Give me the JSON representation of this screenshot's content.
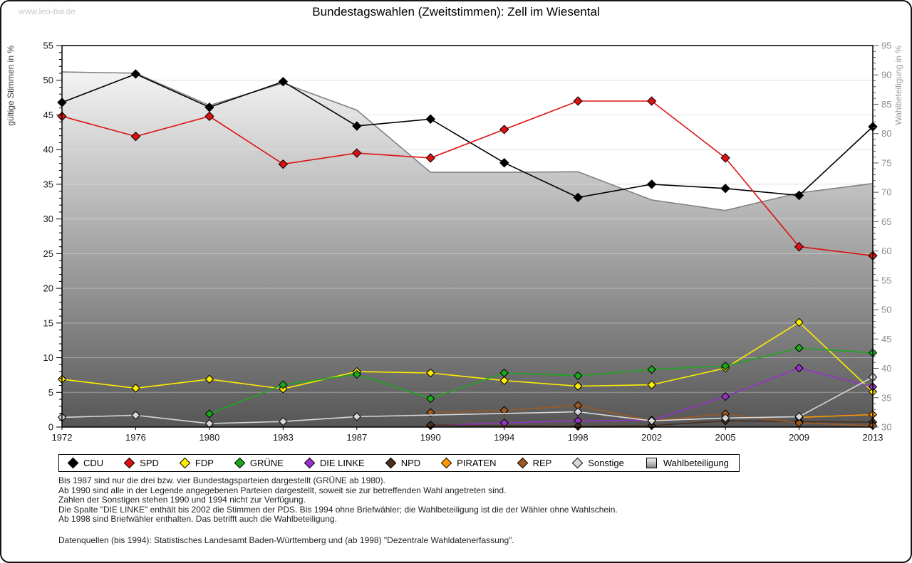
{
  "watermark": "www.leo-bw.de",
  "title": "Bundestagswahlen (Zweitstimmen): Zell im Wiesental",
  "chart_data": {
    "type": "line",
    "title": "Bundestagswahlen (Zweitstimmen): Zell im Wiesental",
    "x_categories": [
      1972,
      1976,
      1980,
      1983,
      1987,
      1990,
      1994,
      1998,
      2002,
      2005,
      2009,
      2013
    ],
    "y_left": {
      "label": "gültige Stimmen in %",
      "min": 0,
      "max": 55,
      "tick_step": 5
    },
    "y_right": {
      "label": "Wahlbeteiligung in %",
      "min": 30,
      "max": 95,
      "tick_step": 5
    },
    "grid": "horizontal",
    "legend_position": "bottom",
    "series": [
      {
        "name": "CDU",
        "color": "#000000",
        "axis": "left",
        "values": [
          46.8,
          50.9,
          46.1,
          49.8,
          43.4,
          44.4,
          38.1,
          33.1,
          35.0,
          34.4,
          33.4,
          43.3
        ]
      },
      {
        "name": "SPD",
        "color": "#dd1111",
        "axis": "left",
        "values": [
          44.8,
          41.9,
          44.8,
          37.9,
          39.5,
          38.8,
          42.9,
          47.0,
          47.0,
          38.8,
          26.0,
          24.7
        ]
      },
      {
        "name": "FDP",
        "color": "#ffee00",
        "axis": "left",
        "values": [
          6.9,
          5.6,
          6.9,
          5.5,
          8.0,
          7.8,
          6.7,
          5.9,
          6.1,
          8.5,
          15.1,
          5.1
        ]
      },
      {
        "name": "GRÜNE",
        "color": "#1ca81c",
        "axis": "left",
        "values": [
          null,
          null,
          1.9,
          6.1,
          7.6,
          4.1,
          7.8,
          7.4,
          8.3,
          8.8,
          11.4,
          10.7
        ]
      },
      {
        "name": "DIE LINKE",
        "color": "#9632c8",
        "axis": "left",
        "values": [
          null,
          null,
          null,
          null,
          null,
          0.2,
          0.6,
          0.9,
          1.0,
          4.4,
          8.5,
          5.8
        ]
      },
      {
        "name": "NPD",
        "color": "#4a2f1d",
        "axis": "left",
        "values": [
          null,
          null,
          null,
          null,
          null,
          0.3,
          null,
          0.1,
          0.2,
          0.9,
          0.8,
          0.7
        ]
      },
      {
        "name": "PIRATEN",
        "color": "#ff9900",
        "axis": "left",
        "values": [
          null,
          null,
          null,
          null,
          null,
          null,
          null,
          null,
          null,
          null,
          1.4,
          1.8
        ]
      },
      {
        "name": "REP",
        "color": "#9c5a24",
        "axis": "left",
        "values": [
          null,
          null,
          null,
          null,
          null,
          2.1,
          2.4,
          3.1,
          0.9,
          1.9,
          0.6,
          0.2
        ]
      },
      {
        "name": "Sonstige",
        "color": "#d8d8d8",
        "axis": "left",
        "values": [
          1.4,
          1.7,
          0.5,
          0.8,
          1.5,
          null,
          null,
          2.2,
          0.9,
          1.3,
          1.5,
          7.2
        ]
      },
      {
        "name": "Wahlbeteiligung",
        "color": "#828282",
        "axis": "right",
        "type": "area",
        "values": [
          90.5,
          90.3,
          84.8,
          88.6,
          84.0,
          73.4,
          73.4,
          73.5,
          68.7,
          66.9,
          69.9,
          71.5
        ]
      }
    ]
  },
  "footnotes": {
    "lines": [
      "Bis 1987 sind nur die drei bzw. vier Bundestagsparteien dargestellt (GRÜNE ab 1980).",
      "Ab 1990 sind alle in der Legende angegebenen Parteien dargestellt, soweit sie zur betreffenden Wahl angetreten sind.",
      "Zahlen der Sonstigen stehen 1990 und 1994 nicht zur Verfügung.",
      "Die Spalte \"DIE LINKE\" enthält bis 2002 die Stimmen der PDS. Bis 1994 ohne Briefwähler; die Wahlbeteiligung ist die der Wähler ohne Wahlschein.",
      "Ab 1998 sind Briefwähler enthalten. Das betrifft auch die Wahlbeteiligung."
    ],
    "source": "Datenquellen (bis 1994): Statistisches Landesamt Baden-Württemberg und (ab 1998) \"Dezentrale Wahldatenerfassung\"."
  }
}
